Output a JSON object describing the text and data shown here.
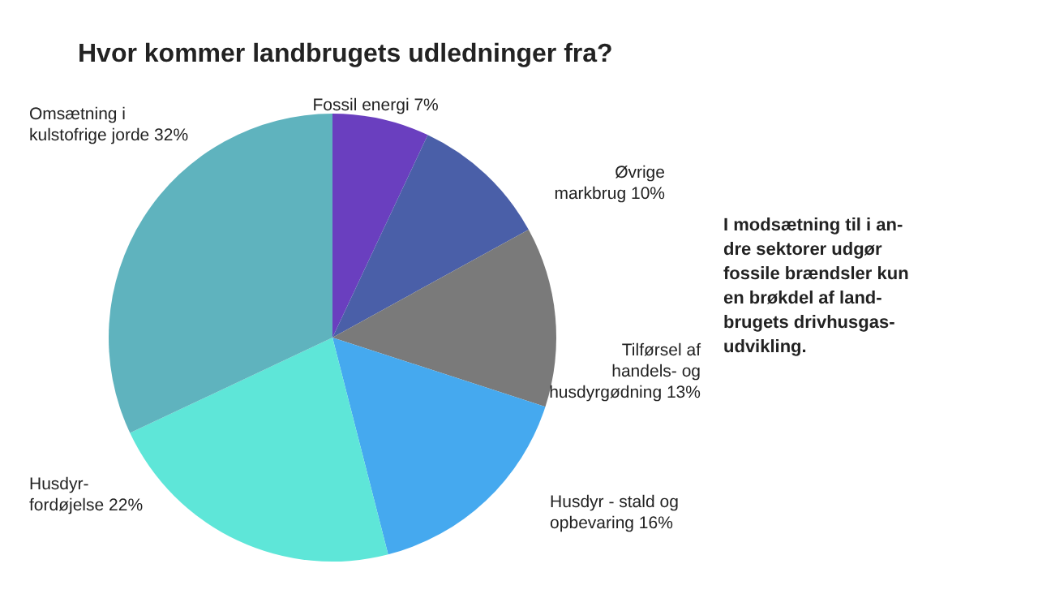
{
  "chart_data": {
    "type": "pie",
    "title": "Hvor kommer landbrugets udledninger fra?",
    "categories": [
      "Fossil energi",
      "Øvrige\nmarkbrug",
      "Tilførsel af\nhandels- og\nhusdyrgødning",
      "Husdyr - stald og\nopbevaring",
      "Husdyr-\nfordøjelse",
      "Omsætning i\nkulstofrige jorde"
    ],
    "values": [
      7,
      10,
      13,
      16,
      22,
      32
    ],
    "value_labels": [
      "7%",
      "10%",
      "13%",
      "16%",
      "22%",
      "32%"
    ],
    "colors": [
      "#6a3fbf",
      "#4a5fa8",
      "#7a7a7a",
      "#45a9ef",
      "#5ee6d8",
      "#5fb3be"
    ],
    "annotations": [
      "I modsætning til i an-\ndre sektorer udgør\nfossile brændsler kun\nen brøkdel af land-\nbrugets drivhusgas-\nudvikling."
    ]
  }
}
